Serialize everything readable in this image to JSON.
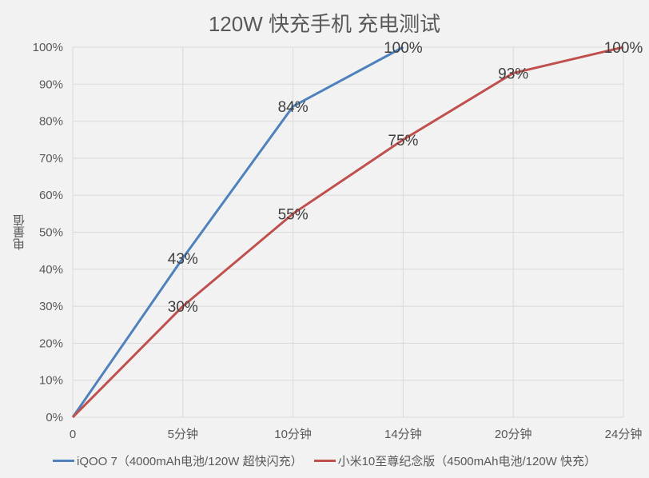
{
  "chart_data": {
    "type": "line",
    "title": "120W 快充手机  充电测试",
    "xlabel": "",
    "ylabel": "电量值",
    "categories": [
      "0",
      "5分钟",
      "10分钟",
      "14分钟",
      "20分钟",
      "24分钟"
    ],
    "yticks": [
      "0%",
      "10%",
      "20%",
      "30%",
      "40%",
      "50%",
      "60%",
      "70%",
      "80%",
      "90%",
      "100%"
    ],
    "ylim": [
      0,
      100
    ],
    "grid": true,
    "legend_position": "bottom",
    "series": [
      {
        "name": "iQOO 7（4000mAh电池/120W 超快闪充）",
        "color": "#4f81bd",
        "values": [
          0,
          43,
          84,
          100,
          null,
          null
        ],
        "labels": [
          "",
          "43%",
          "84%",
          "100%",
          "",
          ""
        ]
      },
      {
        "name": "小米10至尊纪念版（4500mAh电池/120W 快充）",
        "color": "#c0504d",
        "values": [
          0,
          30,
          55,
          75,
          93,
          100
        ],
        "labels": [
          "",
          "30%",
          "55%",
          "75%",
          "93%",
          "100%"
        ]
      }
    ]
  }
}
